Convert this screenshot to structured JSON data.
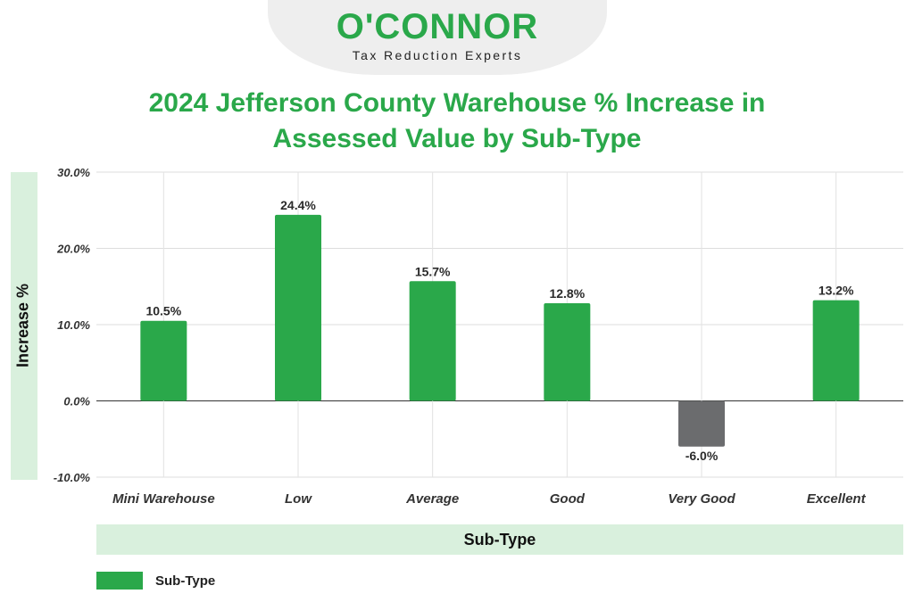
{
  "logo": {
    "wordmark": "O'CONNOR",
    "tagline": "Tax Reduction Experts"
  },
  "colors": {
    "positive": "#2aa84a",
    "negative": "#6b6c6e",
    "title": "#2aa84a",
    "label_band": "#d9f0dd"
  },
  "chart_data": {
    "type": "bar",
    "title": "2024 Jefferson County Warehouse % Increase in Assessed Value by Sub-Type",
    "title_lines": [
      "2024 Jefferson County Warehouse % Increase in",
      "Assessed Value by Sub-Type"
    ],
    "xlabel": "Sub-Type",
    "ylabel": "Increase %",
    "categories": [
      "Mini Warehouse",
      "Low",
      "Average",
      "Good",
      "Very Good",
      "Excellent"
    ],
    "series": [
      {
        "name": "Sub-Type",
        "values": [
          10.5,
          24.4,
          15.7,
          12.8,
          -6.0,
          13.2
        ]
      }
    ],
    "data_labels": [
      "10.5%",
      "24.4%",
      "15.7%",
      "12.8%",
      "-6.0%",
      "13.2%"
    ],
    "ylim": [
      -10,
      30
    ],
    "yticks": [
      30,
      20,
      10,
      0,
      -10
    ],
    "ytick_labels": [
      "30.0%",
      "20.0%",
      "10.0%",
      "0.0%",
      "-10.0%"
    ],
    "grid": true,
    "legend": {
      "position": "bottom-left",
      "label": "Sub-Type"
    }
  }
}
